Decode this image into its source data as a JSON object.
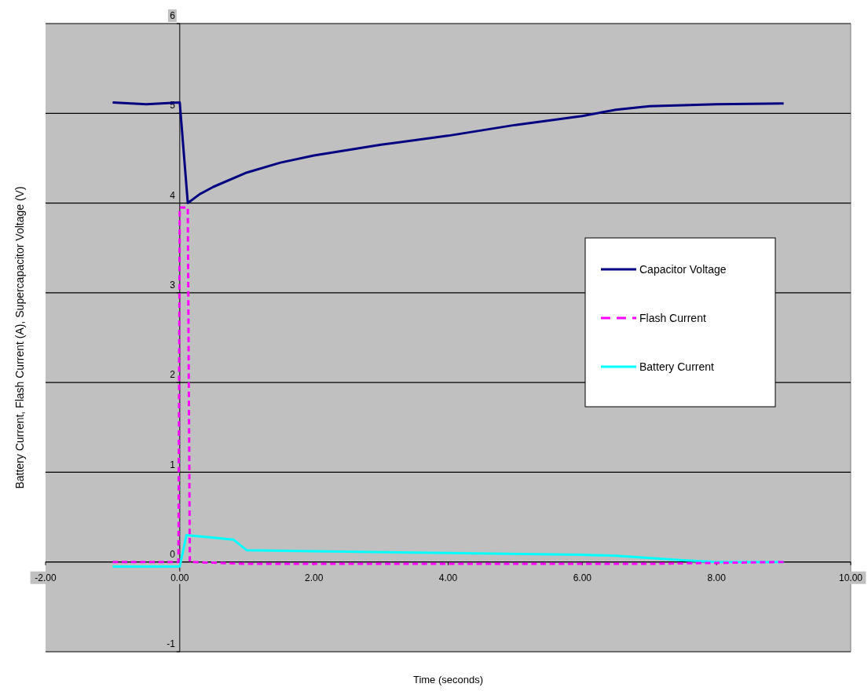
{
  "chart_data": {
    "type": "line",
    "xlabel": "Time (seconds)",
    "ylabel": "Battery Current, Flash Current (A), Supercapacitor Voltage (V)",
    "xlim": [
      -2,
      10
    ],
    "ylim": [
      -1,
      6
    ],
    "xticks": [
      {
        "value": -2,
        "label": "-2.00"
      },
      {
        "value": 0,
        "label": "0.00"
      },
      {
        "value": 2,
        "label": "2.00"
      },
      {
        "value": 4,
        "label": "4.00"
      },
      {
        "value": 6,
        "label": "6.00"
      },
      {
        "value": 8,
        "label": "8.00"
      },
      {
        "value": 10,
        "label": "10.00"
      }
    ],
    "yticks": [
      -1,
      0,
      1,
      2,
      3,
      4,
      5,
      6
    ],
    "grid": "y",
    "legend": "right",
    "series": [
      {
        "name": "Capacitor Voltage",
        "color": "#000080",
        "line_style": "solid",
        "x": [
          -1,
          -0.5,
          0,
          0.12,
          0.3,
          0.5,
          1,
          1.5,
          2,
          3,
          4,
          5,
          6,
          6.5,
          7,
          8,
          9
        ],
        "values": [
          5.12,
          5.1,
          5.12,
          4.0,
          4.1,
          4.18,
          4.34,
          4.45,
          4.53,
          4.65,
          4.75,
          4.87,
          4.97,
          5.04,
          5.08,
          5.1,
          5.11
        ]
      },
      {
        "name": "Flash Current",
        "color": "#ff00ff",
        "line_style": "dashed",
        "x": [
          -1,
          -0.02,
          0.0,
          0.12,
          0.15,
          1,
          3,
          5,
          7,
          9
        ],
        "values": [
          0,
          0,
          3.95,
          3.95,
          0,
          -0.02,
          -0.02,
          -0.02,
          -0.02,
          0
        ]
      },
      {
        "name": "Battery Current",
        "color": "#00ffff",
        "line_style": "solid",
        "x": [
          -1,
          -0.5,
          0,
          0.1,
          0.5,
          0.8,
          1,
          2,
          4,
          6,
          6.5,
          7.5,
          8,
          9
        ],
        "values": [
          -0.05,
          -0.05,
          -0.05,
          0.3,
          0.27,
          0.25,
          0.13,
          0.12,
          0.1,
          0.08,
          0.07,
          0.02,
          0,
          0
        ]
      }
    ]
  }
}
